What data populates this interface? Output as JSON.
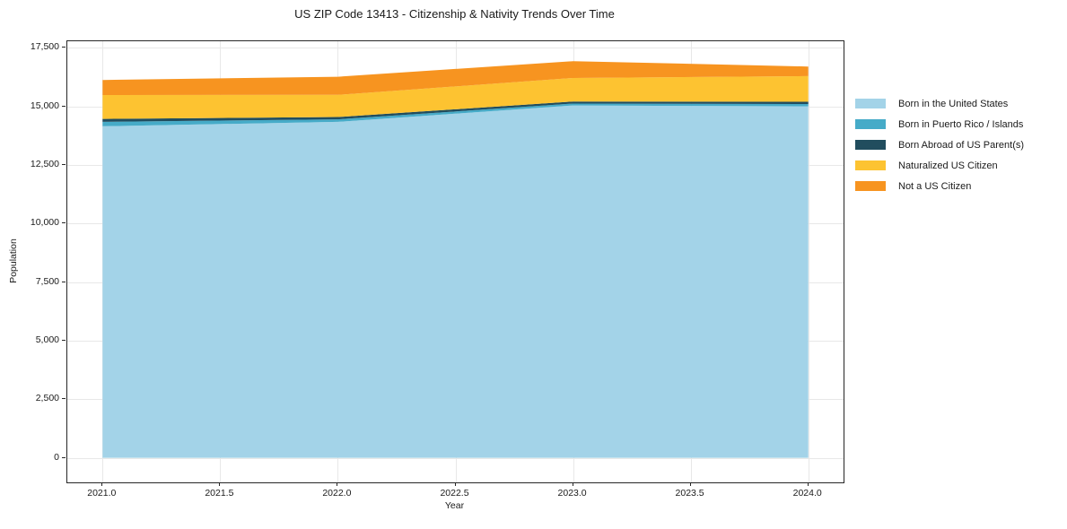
{
  "chart_data": {
    "type": "area",
    "stacked": true,
    "title": "US ZIP Code 13413 - Citizenship & Nativity Trends Over Time",
    "xlabel": "Year",
    "ylabel": "Population",
    "x": [
      2021,
      2022,
      2023,
      2024
    ],
    "series": [
      {
        "name": "Born in the United States",
        "color": "#a3d3e8",
        "values": [
          14150,
          14340,
          15040,
          15000
        ]
      },
      {
        "name": "Born in Puerto Rico / Islands",
        "color": "#46abc8",
        "values": [
          190,
          105,
          80,
          100
        ]
      },
      {
        "name": "Born Abroad of US Parent(s)",
        "color": "#214d5e",
        "values": [
          125,
          100,
          90,
          95
        ]
      },
      {
        "name": "Naturalized US Citizen",
        "color": "#fdc331",
        "values": [
          1020,
          945,
          1000,
          1095
        ]
      },
      {
        "name": "Not a US Citizen",
        "color": "#f79420",
        "values": [
          640,
          775,
          720,
          410
        ]
      }
    ],
    "stack_totals": [
      16125,
      16265,
      16930,
      16700
    ],
    "xlim": [
      2020.85,
      2024.15
    ],
    "ylim": [
      -1050,
      17780
    ],
    "xticks": [
      {
        "value": 2021.0,
        "label": "2021.0"
      },
      {
        "value": 2021.5,
        "label": "2021.5"
      },
      {
        "value": 2022.0,
        "label": "2022.0"
      },
      {
        "value": 2022.5,
        "label": "2022.5"
      },
      {
        "value": 2023.0,
        "label": "2023.0"
      },
      {
        "value": 2023.5,
        "label": "2023.5"
      },
      {
        "value": 2024.0,
        "label": "2024.0"
      }
    ],
    "yticks": [
      {
        "value": 0,
        "label": "0"
      },
      {
        "value": 2500,
        "label": "2,500"
      },
      {
        "value": 5000,
        "label": "5,000"
      },
      {
        "value": 7500,
        "label": "7,500"
      },
      {
        "value": 10000,
        "label": "10,000"
      },
      {
        "value": 12500,
        "label": "12,500"
      },
      {
        "value": 15000,
        "label": "15,000"
      },
      {
        "value": 17500,
        "label": "17,500"
      }
    ],
    "grid": true,
    "legend_position": "right-outside-frameless"
  }
}
